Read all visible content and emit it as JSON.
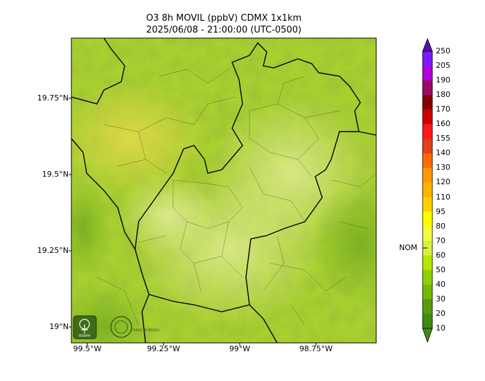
{
  "title": {
    "line1": "O3 8h MOVIL (ppbV) CDMX 1x1km",
    "line2": "2025/06/08 - 21:00:00 (UTC-0500)"
  },
  "map": {
    "lat_ticks": [
      "19.75°N",
      "19.5°N",
      "19.25°N",
      "19°N"
    ],
    "lon_ticks": [
      "99.5°W",
      "99.25°W",
      "99°W",
      "98.75°W"
    ],
    "logos": [
      {
        "name": "SEDEMA",
        "label": "SEDEMA"
      },
      {
        "name": "Ciudad de Mexico",
        "label": "CIUDAD DE MÉXICO"
      }
    ]
  },
  "colorbar": {
    "ticks": [
      "250",
      "205",
      "190",
      "180",
      "170",
      "160",
      "155",
      "140",
      "130",
      "120",
      "110",
      "95",
      "80",
      "70",
      "60",
      "50",
      "40",
      "30",
      "20",
      "10"
    ],
    "colors": [
      "#5b0fa8",
      "#7a1aff",
      "#b100d8",
      "#9c0a68",
      "#8b0000",
      "#d00000",
      "#ff1a1a",
      "#e0401a",
      "#ff6a00",
      "#ff9a00",
      "#ffb400",
      "#ffd200",
      "#ffff00",
      "#f0ff40",
      "#d8f040",
      "#b8e800",
      "#90d000",
      "#74b800",
      "#5a9a10",
      "#3f8a10"
    ],
    "nom_label": "NOM",
    "nom_value": 60
  }
}
